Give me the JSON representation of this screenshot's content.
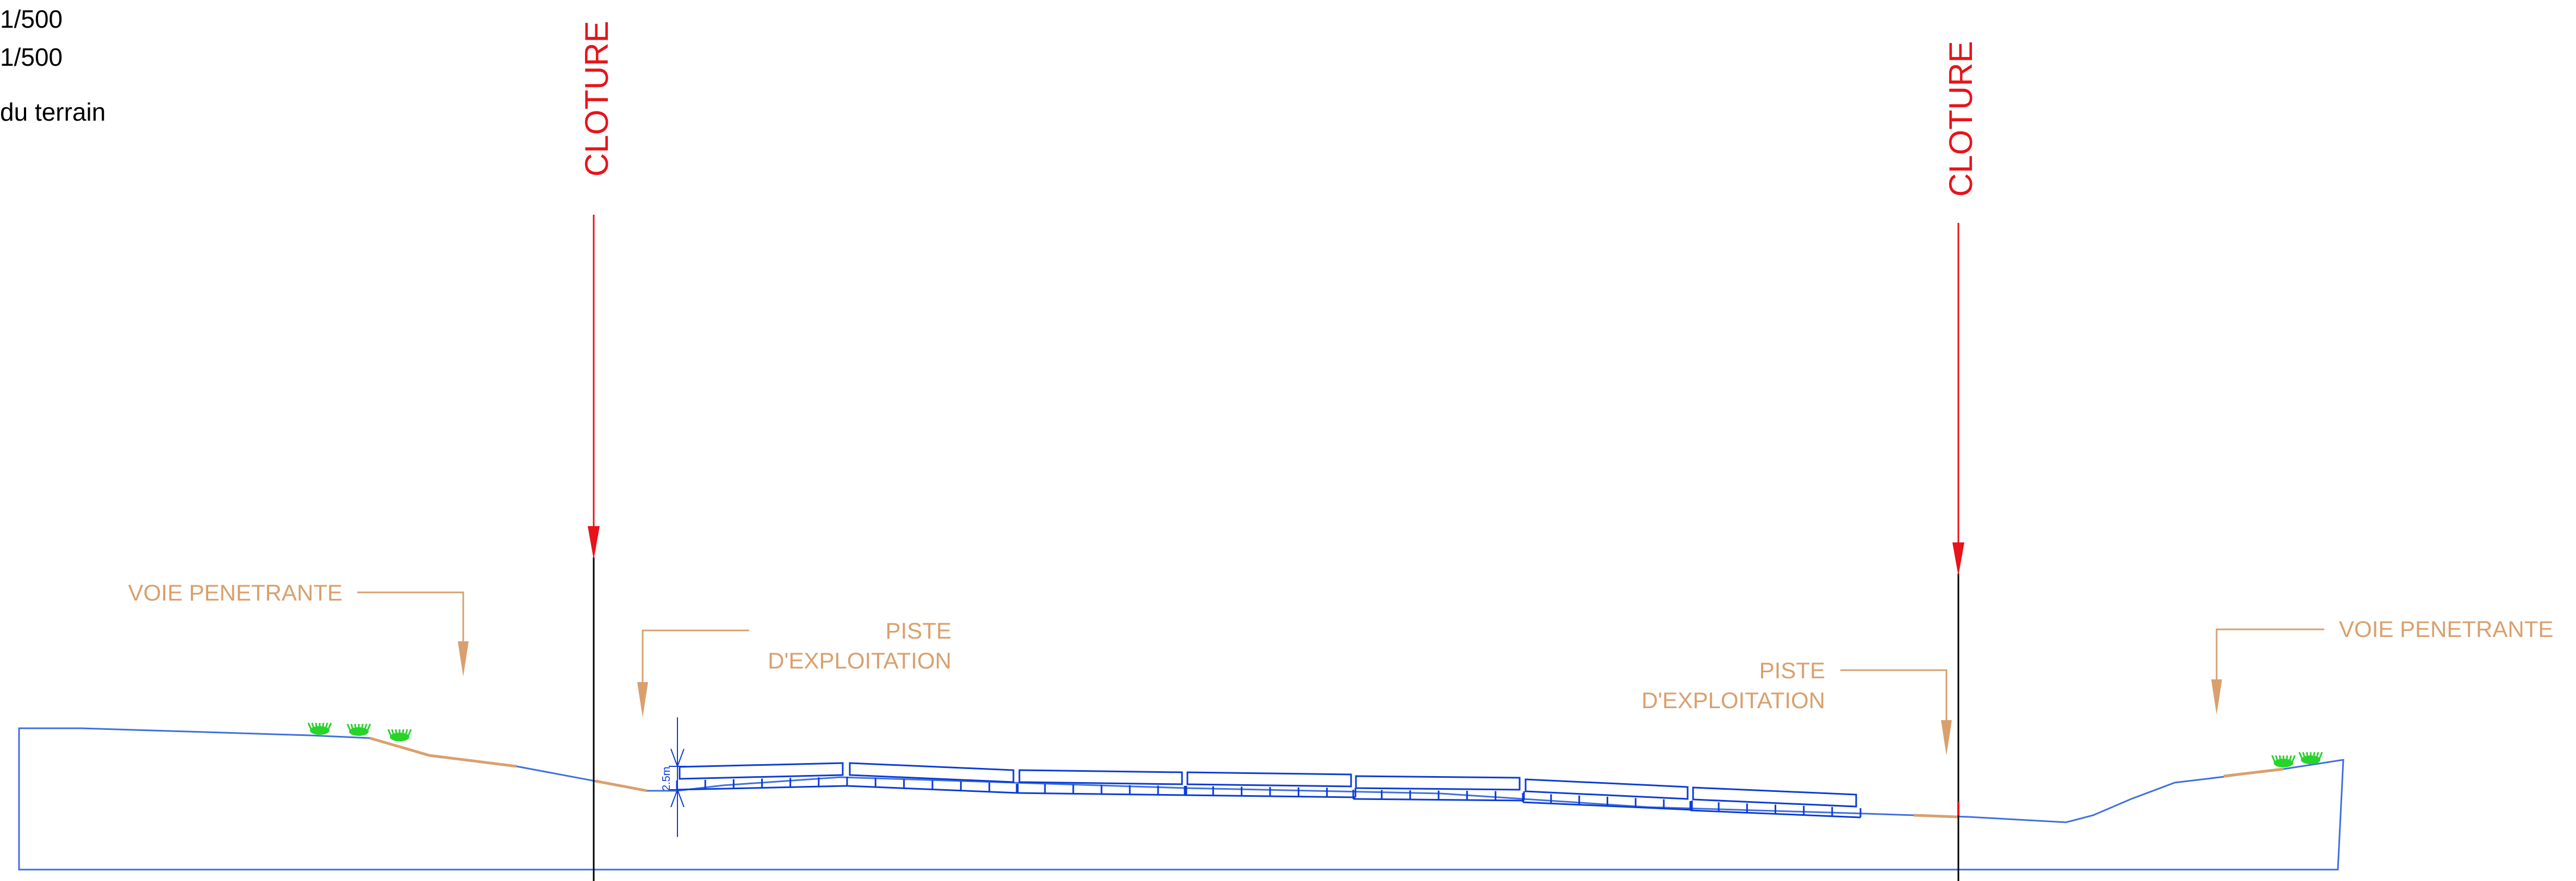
{
  "header": {
    "scale_line_1": "1/500",
    "scale_line_2": "1/500",
    "terrain_label": "du terrain"
  },
  "labels": {
    "cloture_left": "CLOTURE",
    "cloture_right": "CLOTURE",
    "voie_left": "VOIE PENETRANTE",
    "voie_right": "VOIE PENETRANTE",
    "piste_left_line1": "PISTE",
    "piste_left_line2": "D'EXPLOITATION",
    "piste_right_line1": "PISTE",
    "piste_right_line2": "D'EXPLOITATION",
    "dimension": "2.5m"
  },
  "colors": {
    "fence": "#e8131b",
    "annotation": "#d9a06d",
    "terrain": "#3f6fe0",
    "panels": "#0a3bd6",
    "grass": "#27d42a",
    "post": "#000000"
  }
}
